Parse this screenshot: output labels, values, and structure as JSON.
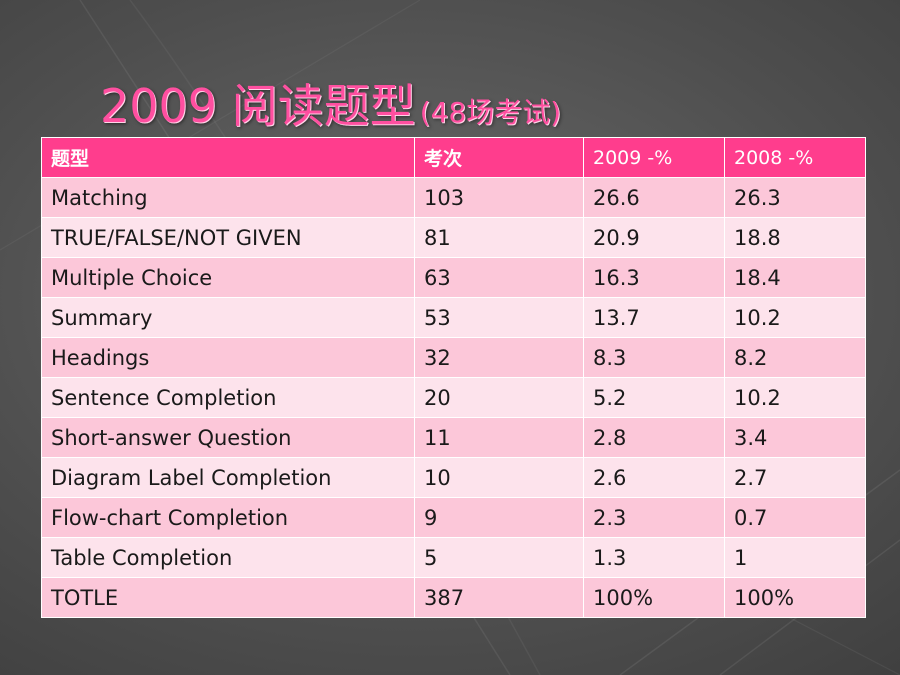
{
  "slide": {
    "title_main": "2009 阅读题型",
    "title_sub": "(48场考试)"
  },
  "table": {
    "headers": [
      "题型",
      "考次",
      "2009 -%",
      "2008 -%"
    ],
    "rows": [
      [
        "Matching",
        "103",
        "26.6",
        "26.3"
      ],
      [
        "TRUE/FALSE/NOT GIVEN",
        "81",
        "20.9",
        "18.8"
      ],
      [
        "Multiple Choice",
        "63",
        "16.3",
        "18.4"
      ],
      [
        "Summary",
        "53",
        "13.7",
        "10.2"
      ],
      [
        "Headings",
        "32",
        "8.3",
        "8.2"
      ],
      [
        "Sentence Completion",
        "20",
        "5.2",
        "10.2"
      ],
      [
        "Short-answer Question",
        "11",
        "2.8",
        "3.4"
      ],
      [
        "Diagram Label Completion",
        "10",
        "2.6",
        "2.7"
      ],
      [
        "Flow-chart Completion",
        "9",
        "2.3",
        "0.7"
      ],
      [
        "Table Completion",
        "5",
        "1.3",
        "1"
      ],
      [
        "TOTLE",
        "387",
        "100%",
        "100%"
      ]
    ]
  },
  "colors": {
    "header_bg": "#ff3d8d",
    "row_odd": "#fcc7d9",
    "row_even": "#fde3ec",
    "title": "#ff4fa0",
    "background": "#5a5a5a"
  }
}
